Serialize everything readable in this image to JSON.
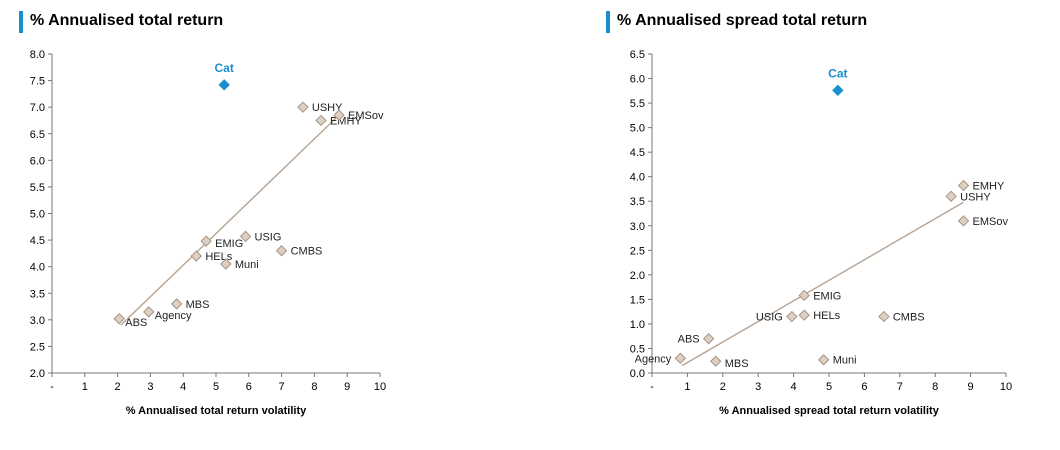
{
  "colors": {
    "accent": "#1a8fcf",
    "point_fill": "#ddd0c3",
    "point_stroke": "#a69483",
    "trend": "#b7a493",
    "axis": "#777777"
  },
  "chart_data": [
    {
      "type": "scatter",
      "title": "% Annualised total return",
      "xlabel": "% Annualised total return volatility",
      "ylabel": "",
      "xlim": [
        0,
        10
      ],
      "ylim": [
        2.0,
        8.0
      ],
      "xticks": [
        "-",
        "1",
        "2",
        "3",
        "4",
        "5",
        "6",
        "7",
        "8",
        "9",
        "10"
      ],
      "yticks": [
        "2.0",
        "2.5",
        "3.0",
        "3.5",
        "4.0",
        "4.5",
        "5.0",
        "5.5",
        "6.0",
        "6.5",
        "7.0",
        "7.5",
        "8.0"
      ],
      "points": [
        {
          "label": "ABS",
          "x": 2.05,
          "y": 3.02,
          "anchor": "below-right"
        },
        {
          "label": "Agency",
          "x": 2.95,
          "y": 3.15,
          "anchor": "below-right"
        },
        {
          "label": "MBS",
          "x": 3.8,
          "y": 3.3,
          "anchor": "right"
        },
        {
          "label": "HELs",
          "x": 4.4,
          "y": 4.2,
          "anchor": "right"
        },
        {
          "label": "EMIG",
          "x": 4.7,
          "y": 4.48,
          "anchor": "right-low"
        },
        {
          "label": "Muni",
          "x": 5.3,
          "y": 4.05,
          "anchor": "right"
        },
        {
          "label": "USIG",
          "x": 5.9,
          "y": 4.57,
          "anchor": "right"
        },
        {
          "label": "CMBS",
          "x": 7.0,
          "y": 4.3,
          "anchor": "right"
        },
        {
          "label": "USHY",
          "x": 7.65,
          "y": 7.0,
          "anchor": "right"
        },
        {
          "label": "EMHY",
          "x": 8.2,
          "y": 6.75,
          "anchor": "right"
        },
        {
          "label": "EMSov",
          "x": 8.75,
          "y": 6.85,
          "anchor": "right"
        }
      ],
      "highlight": {
        "label": "Cat",
        "x": 5.25,
        "y": 7.42
      },
      "trendline": {
        "x": [
          2.1,
          8.8
        ],
        "y": [
          2.9,
          6.88
        ]
      }
    },
    {
      "type": "scatter",
      "title": "% Annualised spread total return",
      "xlabel": "% Annualised spread total return volatility",
      "ylabel": "",
      "xlim": [
        0,
        10
      ],
      "ylim": [
        0.0,
        6.5
      ],
      "xticks": [
        "-",
        "1",
        "2",
        "3",
        "4",
        "5",
        "6",
        "7",
        "8",
        "9",
        "10"
      ],
      "yticks": [
        "0.0",
        "0.5",
        "1.0",
        "1.5",
        "2.0",
        "2.5",
        "3.0",
        "3.5",
        "4.0",
        "4.5",
        "5.0",
        "5.5",
        "6.0",
        "6.5"
      ],
      "points": [
        {
          "label": "Agency",
          "x": 0.8,
          "y": 0.3,
          "anchor": "left"
        },
        {
          "label": "ABS",
          "x": 1.6,
          "y": 0.7,
          "anchor": "left"
        },
        {
          "label": "MBS",
          "x": 1.8,
          "y": 0.24,
          "anchor": "right-low"
        },
        {
          "label": "USIG",
          "x": 3.95,
          "y": 1.15,
          "anchor": "left"
        },
        {
          "label": "HELs",
          "x": 4.3,
          "y": 1.18,
          "anchor": "right"
        },
        {
          "label": "EMIG",
          "x": 4.3,
          "y": 1.58,
          "anchor": "right"
        },
        {
          "label": "Muni",
          "x": 4.85,
          "y": 0.27,
          "anchor": "right"
        },
        {
          "label": "CMBS",
          "x": 6.55,
          "y": 1.15,
          "anchor": "right"
        },
        {
          "label": "USHY",
          "x": 8.45,
          "y": 3.6,
          "anchor": "right"
        },
        {
          "label": "EMHY",
          "x": 8.8,
          "y": 3.82,
          "anchor": "right"
        },
        {
          "label": "EMSov",
          "x": 8.8,
          "y": 3.1,
          "anchor": "right"
        }
      ],
      "highlight": {
        "label": "Cat",
        "x": 5.25,
        "y": 5.76
      },
      "trendline": {
        "x": [
          0.85,
          8.8
        ],
        "y": [
          0.15,
          3.48
        ]
      }
    }
  ]
}
